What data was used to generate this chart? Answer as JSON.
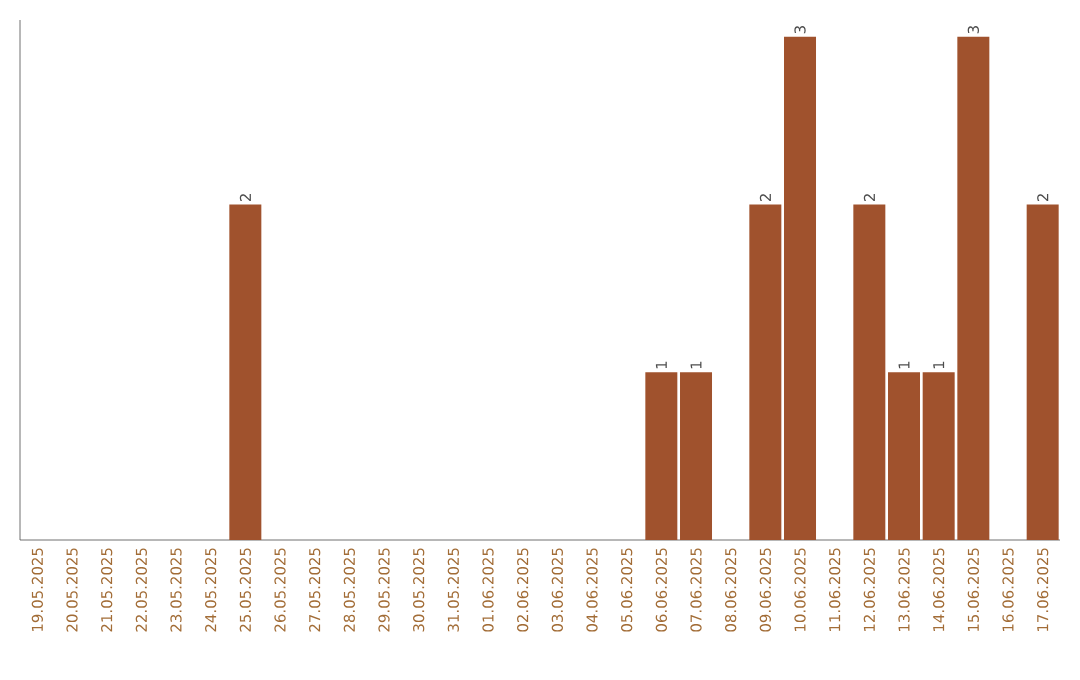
{
  "chart_data": {
    "type": "bar",
    "categories": [
      "19.05.2025",
      "20.05.2025",
      "21.05.2025",
      "22.05.2025",
      "23.05.2025",
      "24.05.2025",
      "25.05.2025",
      "26.05.2025",
      "27.05.2025",
      "28.05.2025",
      "29.05.2025",
      "30.05.2025",
      "31.05.2025",
      "01.06.2025",
      "02.06.2025",
      "03.06.2025",
      "04.06.2025",
      "05.06.2025",
      "06.06.2025",
      "07.06.2025",
      "08.06.2025",
      "09.06.2025",
      "10.06.2025",
      "11.06.2025",
      "12.06.2025",
      "13.06.2025",
      "14.06.2025",
      "15.06.2025",
      "16.06.2025",
      "17.06.2025"
    ],
    "values": [
      0,
      0,
      0,
      0,
      0,
      0,
      2,
      0,
      0,
      0,
      0,
      0,
      0,
      0,
      0,
      0,
      0,
      0,
      1,
      1,
      0,
      2,
      3,
      0,
      2,
      1,
      1,
      3,
      0,
      2
    ],
    "value_labels": [
      null,
      null,
      null,
      null,
      null,
      null,
      "2",
      null,
      null,
      null,
      null,
      null,
      null,
      null,
      null,
      null,
      null,
      null,
      "1",
      "1",
      null,
      "2",
      "3",
      null,
      "2",
      "1",
      "1",
      "3",
      null,
      "2"
    ],
    "color": "#a0522d",
    "ylim": [
      0,
      3.1
    ],
    "tick_labels": "x",
    "grid": false
  }
}
